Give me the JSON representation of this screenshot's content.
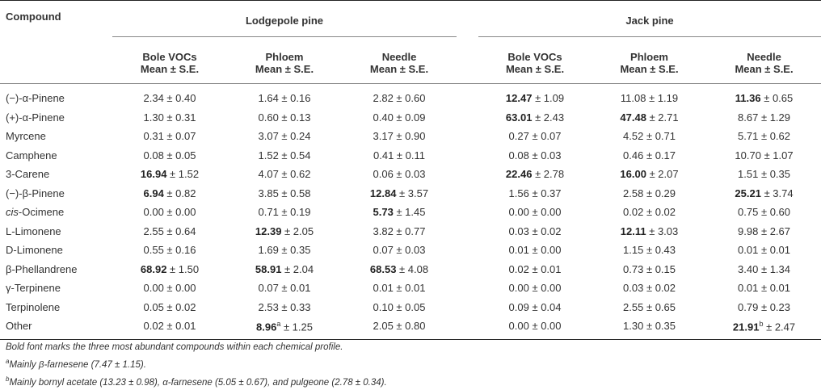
{
  "header": {
    "compound": "Compound",
    "group_lodgepole": "Lodgepole pine",
    "group_jack": "Jack pine",
    "col_bole": "Bole VOCs",
    "col_phloem": "Phloem",
    "col_needle": "Needle",
    "mean_se": "Mean ± S.E."
  },
  "rows": [
    {
      "name": "(−)-α-Pinene",
      "cells": [
        [
          "",
          "2.34 ± 0.40"
        ],
        [
          "",
          "1.64 ± 0.16"
        ],
        [
          "",
          "2.82 ± 0.60"
        ],
        [
          "12.47",
          " ± 1.09"
        ],
        [
          "",
          "11.08 ± 1.19"
        ],
        [
          "11.36",
          " ± 0.65"
        ]
      ]
    },
    {
      "name": "(+)-α-Pinene",
      "cells": [
        [
          "",
          "1.30 ± 0.31"
        ],
        [
          "",
          "0.60 ± 0.13"
        ],
        [
          "",
          "0.40 ± 0.09"
        ],
        [
          "63.01",
          " ± 2.43"
        ],
        [
          "47.48",
          " ± 2.71"
        ],
        [
          "",
          "8.67 ± 1.29"
        ]
      ]
    },
    {
      "name": "Myrcene",
      "cells": [
        [
          "",
          "0.31 ± 0.07"
        ],
        [
          "",
          "3.07 ± 0.24"
        ],
        [
          "",
          "3.17 ± 0.90"
        ],
        [
          "",
          "0.27 ± 0.07"
        ],
        [
          "",
          "4.52 ± 0.71"
        ],
        [
          "",
          "5.71 ± 0.62"
        ]
      ]
    },
    {
      "name": "Camphene",
      "cells": [
        [
          "",
          "0.08 ± 0.05"
        ],
        [
          "",
          "1.52 ± 0.54"
        ],
        [
          "",
          "0.41 ± 0.11"
        ],
        [
          "",
          "0.08 ± 0.03"
        ],
        [
          "",
          "0.46 ± 0.17"
        ],
        [
          "",
          "10.70 ± 1.07"
        ]
      ]
    },
    {
      "name": "3-Carene",
      "cells": [
        [
          "16.94",
          " ± 1.52"
        ],
        [
          "",
          "4.07 ± 0.62"
        ],
        [
          "",
          "0.06 ± 0.03"
        ],
        [
          "22.46",
          " ± 2.78"
        ],
        [
          "16.00",
          " ± 2.07"
        ],
        [
          "",
          "1.51 ± 0.35"
        ]
      ]
    },
    {
      "name": "(−)-β-Pinene",
      "cells": [
        [
          "6.94",
          " ± 0.82"
        ],
        [
          "",
          "3.85 ± 0.58"
        ],
        [
          "12.84",
          " ± 3.57"
        ],
        [
          "",
          "1.56 ± 0.37"
        ],
        [
          "",
          "2.58 ± 0.29"
        ],
        [
          "25.21",
          " ± 3.74"
        ]
      ]
    },
    {
      "name_italic": "cis",
      "name": "-Ocimene",
      "cells": [
        [
          "",
          "0.00 ± 0.00"
        ],
        [
          "",
          "0.71 ± 0.19"
        ],
        [
          "5.73",
          " ± 1.45"
        ],
        [
          "",
          "0.00 ± 0.00"
        ],
        [
          "",
          "0.02 ± 0.02"
        ],
        [
          "",
          "0.75 ± 0.60"
        ]
      ]
    },
    {
      "name": "L-Limonene",
      "cells": [
        [
          "",
          "2.55 ± 0.64"
        ],
        [
          "12.39",
          " ± 2.05"
        ],
        [
          "",
          "3.82 ± 0.77"
        ],
        [
          "",
          "0.03 ± 0.02"
        ],
        [
          "12.11",
          " ± 3.03"
        ],
        [
          "",
          "9.98 ± 2.67"
        ]
      ]
    },
    {
      "name": "D-Limonene",
      "cells": [
        [
          "",
          "0.55 ± 0.16"
        ],
        [
          "",
          "1.69 ± 0.35"
        ],
        [
          "",
          "0.07 ± 0.03"
        ],
        [
          "",
          "0.01 ± 0.00"
        ],
        [
          "",
          "1.15 ± 0.43"
        ],
        [
          "",
          "0.01 ± 0.01"
        ]
      ]
    },
    {
      "name": "β-Phellandrene",
      "cells": [
        [
          "68.92",
          " ± 1.50"
        ],
        [
          "58.91",
          " ± 2.04"
        ],
        [
          "68.53",
          " ± 4.08"
        ],
        [
          "",
          "0.02 ± 0.01"
        ],
        [
          "",
          "0.73 ± 0.15"
        ],
        [
          "",
          "3.40 ± 1.34"
        ]
      ]
    },
    {
      "name": "γ-Terpinene",
      "cells": [
        [
          "",
          "0.00 ± 0.00"
        ],
        [
          "",
          "0.07 ± 0.01"
        ],
        [
          "",
          "0.01 ± 0.01"
        ],
        [
          "",
          "0.00 ± 0.00"
        ],
        [
          "",
          "0.03 ± 0.02"
        ],
        [
          "",
          "0.01 ± 0.01"
        ]
      ]
    },
    {
      "name": "Terpinolene",
      "cells": [
        [
          "",
          "0.05 ± 0.02"
        ],
        [
          "",
          "2.53 ± 0.33"
        ],
        [
          "",
          "0.10 ± 0.05"
        ],
        [
          "",
          "0.09 ± 0.04"
        ],
        [
          "",
          "2.55 ± 0.65"
        ],
        [
          "",
          "0.79 ± 0.23"
        ]
      ]
    },
    {
      "name": "Other",
      "cells": [
        [
          "",
          "0.02 ± 0.01"
        ],
        [
          "8.96",
          " ± 1.25",
          "a"
        ],
        [
          "",
          "2.05 ± 0.80"
        ],
        [
          "",
          "0.00 ± 0.00"
        ],
        [
          "",
          "1.30 ± 0.35"
        ],
        [
          "21.91",
          " ± 2.47",
          "b"
        ]
      ]
    }
  ],
  "notes": {
    "bold_note": "Bold font marks the three most abundant compounds within each chemical profile.",
    "a_mark": "a",
    "a_text": "Mainly β-farnesene (7.47 ± 1.15).",
    "b_mark": "b",
    "b_text": "Mainly bornyl acetate (13.23 ± 0.98), α-farnesene (5.05 ± 0.67), and pulgeone (2.78 ± 0.34)."
  }
}
